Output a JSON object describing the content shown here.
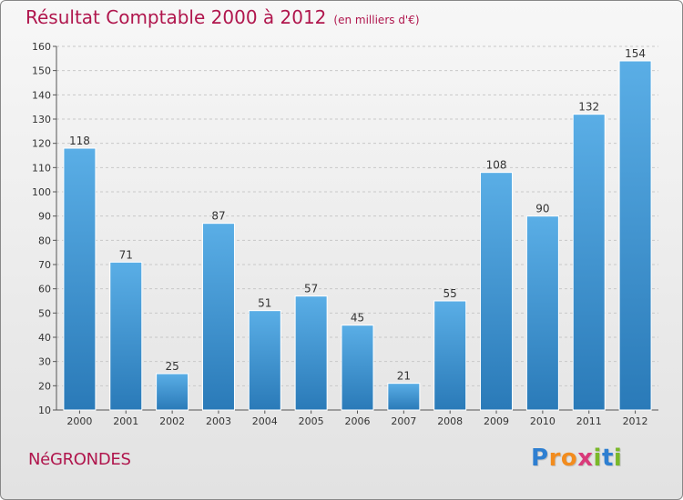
{
  "chart_data": {
    "type": "bar",
    "title": "Résultat Comptable 2000 à 2012",
    "unit": "(en milliers d'€)",
    "categories": [
      "2000",
      "2001",
      "2002",
      "2003",
      "2004",
      "2005",
      "2006",
      "2007",
      "2008",
      "2009",
      "2010",
      "2011",
      "2012"
    ],
    "values": [
      118,
      71,
      25,
      87,
      51,
      57,
      45,
      21,
      55,
      108,
      90,
      132,
      154
    ],
    "ylim": [
      10,
      160
    ],
    "yticks": [
      10,
      20,
      30,
      40,
      50,
      60,
      70,
      80,
      90,
      100,
      110,
      120,
      130,
      140,
      150,
      160
    ],
    "xlabel": "",
    "ylabel": "",
    "grid": true
  },
  "commune": "NéGRONDES",
  "logo": {
    "letters": [
      "P",
      "r",
      "o",
      "x",
      "i",
      "t",
      "i"
    ],
    "colors": [
      "#2e7fd1",
      "#f28c1e",
      "#f28c1e",
      "#d93a7a",
      "#7ab829",
      "#2e7fd1",
      "#7ab829"
    ]
  },
  "colors": {
    "bar_top": "#5aaee6",
    "bar_bottom": "#2a7ab8",
    "title": "#b0164d"
  }
}
